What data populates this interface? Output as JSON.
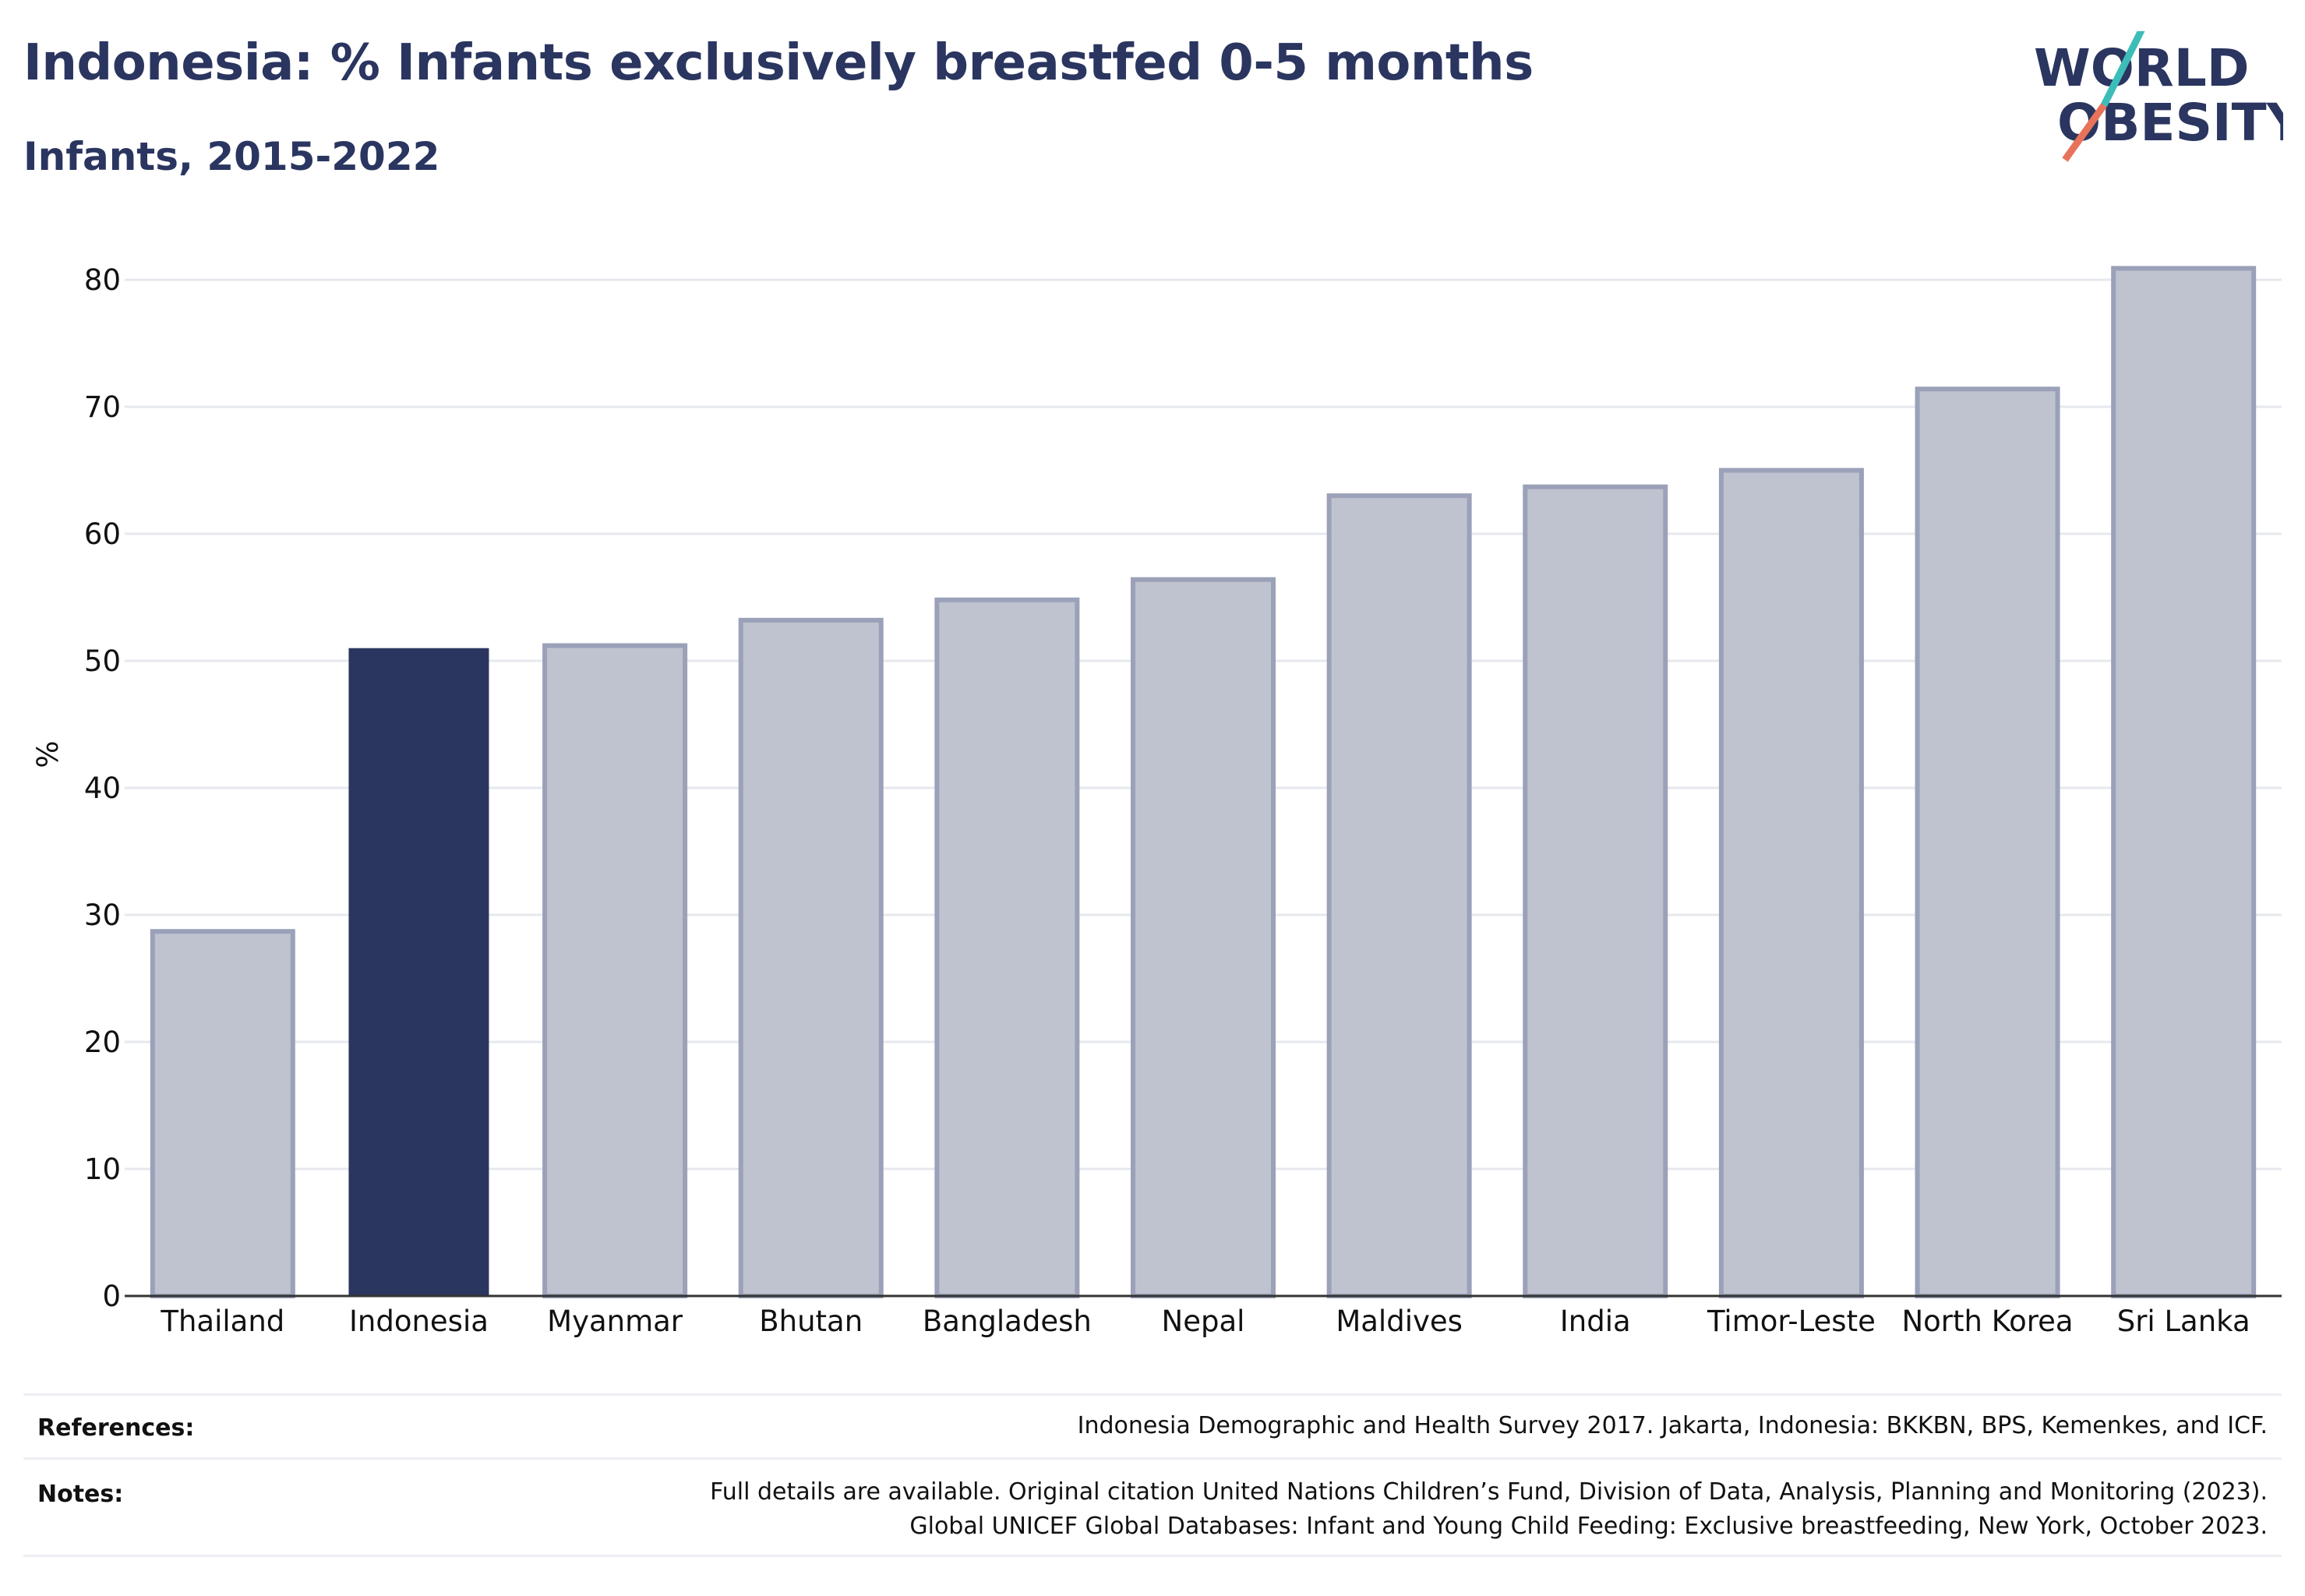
{
  "header": {
    "title": "Indonesia: % Infants exclusively breastfed 0-5 months",
    "subtitle": "Infants, 2015-2022"
  },
  "logo": {
    "line1": "WORLD",
    "line2": "OBESITY",
    "text_color": "#2a3560",
    "slash_top_color": "#3dbdb8",
    "slash_bottom_color": "#e8735a"
  },
  "chart_data": {
    "type": "bar",
    "categories": [
      "Thailand",
      "Indonesia",
      "Myanmar",
      "Bhutan",
      "Bangladesh",
      "Nepal",
      "Maldives",
      "India",
      "Timor-Leste",
      "North Korea",
      "Sri Lanka"
    ],
    "values": [
      28.7,
      51.0,
      51.2,
      53.2,
      54.8,
      56.4,
      63.0,
      63.7,
      65.0,
      71.4,
      80.9
    ],
    "highlight": "Indonesia",
    "ylabel": "%",
    "xlabel": "",
    "ylim": [
      0,
      85
    ],
    "yticks": [
      0,
      10,
      20,
      30,
      40,
      50,
      60,
      70,
      80
    ],
    "grid": true,
    "colors": {
      "highlight": "#2b3660",
      "others_fill": "#bfc3cf",
      "others_stroke": "#9aa1b8"
    }
  },
  "footer": {
    "references_label": "References:",
    "references_text": "Indonesia Demographic and Health Survey 2017. Jakarta, Indonesia: BKKBN, BPS, Kemenkes, and ICF.",
    "notes_label": "Notes:",
    "notes_line1": "Full details are available. Original citation United Nations Children’s Fund, Division of Data, Analysis, Planning and Monitoring (2023).",
    "notes_line2": "Global UNICEF Global Databases: Infant and Young Child Feeding: Exclusive breastfeeding, New York, October 2023."
  }
}
